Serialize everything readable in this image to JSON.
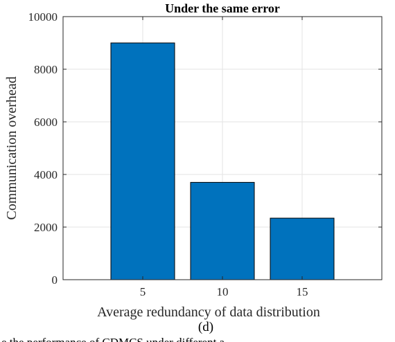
{
  "chart_data": {
    "type": "bar",
    "title": "Under the same error",
    "xlabel": "Average redundancy of data distribution",
    "ylabel": "Communication overhead",
    "categories": [
      "5",
      "10",
      "15"
    ],
    "x": [
      5,
      10,
      15
    ],
    "values": [
      9000,
      3700,
      2340
    ],
    "xlim": [
      0,
      20
    ],
    "ylim": [
      0,
      10000
    ],
    "yticks": [
      "0",
      "2000",
      "4000",
      "6000",
      "8000",
      "10000"
    ],
    "grid": true,
    "legend": "none",
    "bar_color": "#0072BD",
    "bar_edge_color": "#000000"
  },
  "panel_label": "(d)",
  "caption_fragment": "e the performance of CDMCS under different a"
}
